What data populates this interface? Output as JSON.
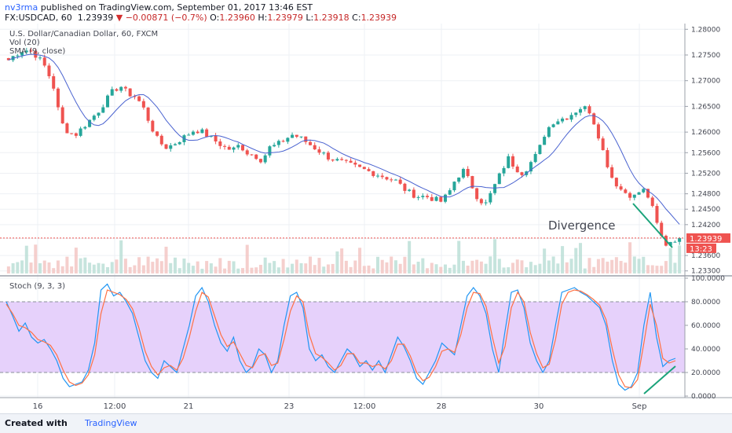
{
  "header": {
    "user": "nv3rma",
    "published_text": "published on TradingView.com, September 01, 2017 13:46 EST",
    "symbol": "FX:USDCAD, 60",
    "last": "1.23939",
    "arrow": "▼",
    "change": "−0.00871 (−0.7%)",
    "o_label": "O:",
    "o": "1.23960",
    "h_label": "H:",
    "h": "1.23979",
    "l_label": "L:",
    "l": "1.23918",
    "c_label": "C:",
    "c": "1.23939"
  },
  "main": {
    "title": "U.S. Dollar/Canadian Dollar, 60, FXCM",
    "vol_label": "Vol (20)",
    "sma_label": "SMA (9, close)",
    "annotation": "Divergence",
    "price_tag": "1.23939",
    "countdown": "13:23"
  },
  "stoch": {
    "label": "Stoch (9, 3, 3)"
  },
  "footer": {
    "created_with": "Created with",
    "brand": "TradingView"
  },
  "colors": {
    "up": "#26a69a",
    "down": "#ef5350",
    "sma": "#4a63d0",
    "k": "#2196f3",
    "d": "#ff7043",
    "band": "#e6d1fb",
    "trendline": "#1aa37a",
    "tag": "#ef5350"
  },
  "chart_data": [
    {
      "type": "candlestick",
      "title": "U.S. Dollar/Canadian Dollar, 60, FXCM",
      "x_ticks": [
        "16",
        "12:00",
        "21",
        "23",
        "12:00",
        "28",
        "30",
        "Sep"
      ],
      "y_ticks": [
        1.28,
        1.275,
        1.27,
        1.265,
        1.26,
        1.256,
        1.252,
        1.248,
        1.245,
        1.242,
        1.2393,
        1.236,
        1.233
      ],
      "y_tick_labels": [
        "1.28000",
        "1.27500",
        "1.27000",
        "1.26500",
        "1.26000",
        "1.25600",
        "1.25200",
        "1.24800",
        "1.24500",
        "1.24200",
        "1.23939",
        "1.23600",
        "1.23300"
      ],
      "ylim": [
        1.2325,
        1.2805
      ],
      "close_path": [
        1.274,
        1.2752,
        1.276,
        1.2758,
        1.2745,
        1.2725,
        1.269,
        1.262,
        1.26,
        1.2595,
        1.261,
        1.2625,
        1.264,
        1.266,
        1.268,
        1.269,
        1.2675,
        1.267,
        1.265,
        1.2615,
        1.2585,
        1.257,
        1.2575,
        1.2585,
        1.2595,
        1.2605,
        1.26,
        1.259,
        1.258,
        1.257,
        1.2565,
        1.2575,
        1.256,
        1.2555,
        1.2545,
        1.257,
        1.2575,
        1.2585,
        1.2595,
        1.259,
        1.258,
        1.257,
        1.256,
        1.255,
        1.2545,
        1.254,
        1.2535,
        1.253,
        1.2525,
        1.252,
        1.2515,
        1.251,
        1.2505,
        1.249,
        1.248,
        1.2475,
        1.2475,
        1.247,
        1.2465,
        1.248,
        1.251,
        1.2525,
        1.25,
        1.247,
        1.246,
        1.249,
        1.252,
        1.255,
        1.253,
        1.252,
        1.254,
        1.256,
        1.26,
        1.262,
        1.2625,
        1.263,
        1.264,
        1.265,
        1.264,
        1.26,
        1.255,
        1.251,
        1.249,
        1.248,
        1.2475,
        1.249,
        1.247,
        1.242,
        1.238,
        1.239,
        1.2394
      ],
      "sma_period": 9,
      "last_price": 1.23939,
      "annotation": "Divergence",
      "volume_label": "Vol (20)",
      "sma_label": "SMA (9, close)"
    },
    {
      "type": "line",
      "title": "Stoch (9, 3, 3)",
      "ylim": [
        0,
        100
      ],
      "y_ticks": [
        0,
        20,
        40,
        60,
        80,
        100
      ],
      "y_tick_labels": [
        "0.0000",
        "20.0000",
        "40.0000",
        "60.0000",
        "80.0000",
        "100.0000"
      ],
      "bands": [
        20,
        80
      ],
      "series": [
        {
          "values": [
            80,
            68,
            55,
            62,
            50,
            45,
            48,
            40,
            30,
            15,
            8,
            10,
            12,
            22,
            45,
            90,
            95,
            85,
            88,
            80,
            70,
            50,
            30,
            20,
            15,
            30,
            25,
            20,
            40,
            60,
            85,
            92,
            80,
            60,
            45,
            38,
            50,
            30,
            20,
            25,
            40,
            35,
            20,
            30,
            60,
            85,
            88,
            75,
            40,
            30,
            35,
            25,
            20,
            30,
            40,
            35,
            25,
            30,
            22,
            30,
            20,
            35,
            50,
            42,
            30,
            15,
            10,
            20,
            30,
            45,
            40,
            35,
            60,
            85,
            92,
            85,
            70,
            40,
            20,
            55,
            88,
            90,
            75,
            45,
            30,
            20,
            30,
            60,
            88,
            90,
            92,
            88,
            85,
            80,
            75,
            60,
            30,
            10,
            5,
            8,
            20,
            60,
            88,
            50,
            25,
            30,
            32
          ]
        },
        {
          "values": [
            78,
            70,
            60,
            58,
            54,
            48,
            46,
            43,
            35,
            22,
            12,
            9,
            11,
            18,
            35,
            70,
            90,
            88,
            86,
            82,
            74,
            58,
            38,
            25,
            18,
            24,
            26,
            22,
            32,
            50,
            72,
            88,
            84,
            68,
            52,
            42,
            46,
            36,
            26,
            24,
            34,
            36,
            26,
            28,
            48,
            72,
            85,
            80,
            52,
            36,
            33,
            28,
            22,
            26,
            36,
            36,
            28,
            28,
            25,
            27,
            23,
            30,
            44,
            44,
            34,
            20,
            13,
            16,
            25,
            38,
            40,
            37,
            52,
            75,
            88,
            87,
            76,
            50,
            28,
            42,
            75,
            88,
            80,
            54,
            36,
            24,
            27,
            48,
            78,
            88,
            90,
            89,
            86,
            82,
            77,
            65,
            40,
            18,
            8,
            7,
            14,
            45,
            78,
            60,
            32,
            28,
            30
          ]
        }
      ]
    }
  ]
}
